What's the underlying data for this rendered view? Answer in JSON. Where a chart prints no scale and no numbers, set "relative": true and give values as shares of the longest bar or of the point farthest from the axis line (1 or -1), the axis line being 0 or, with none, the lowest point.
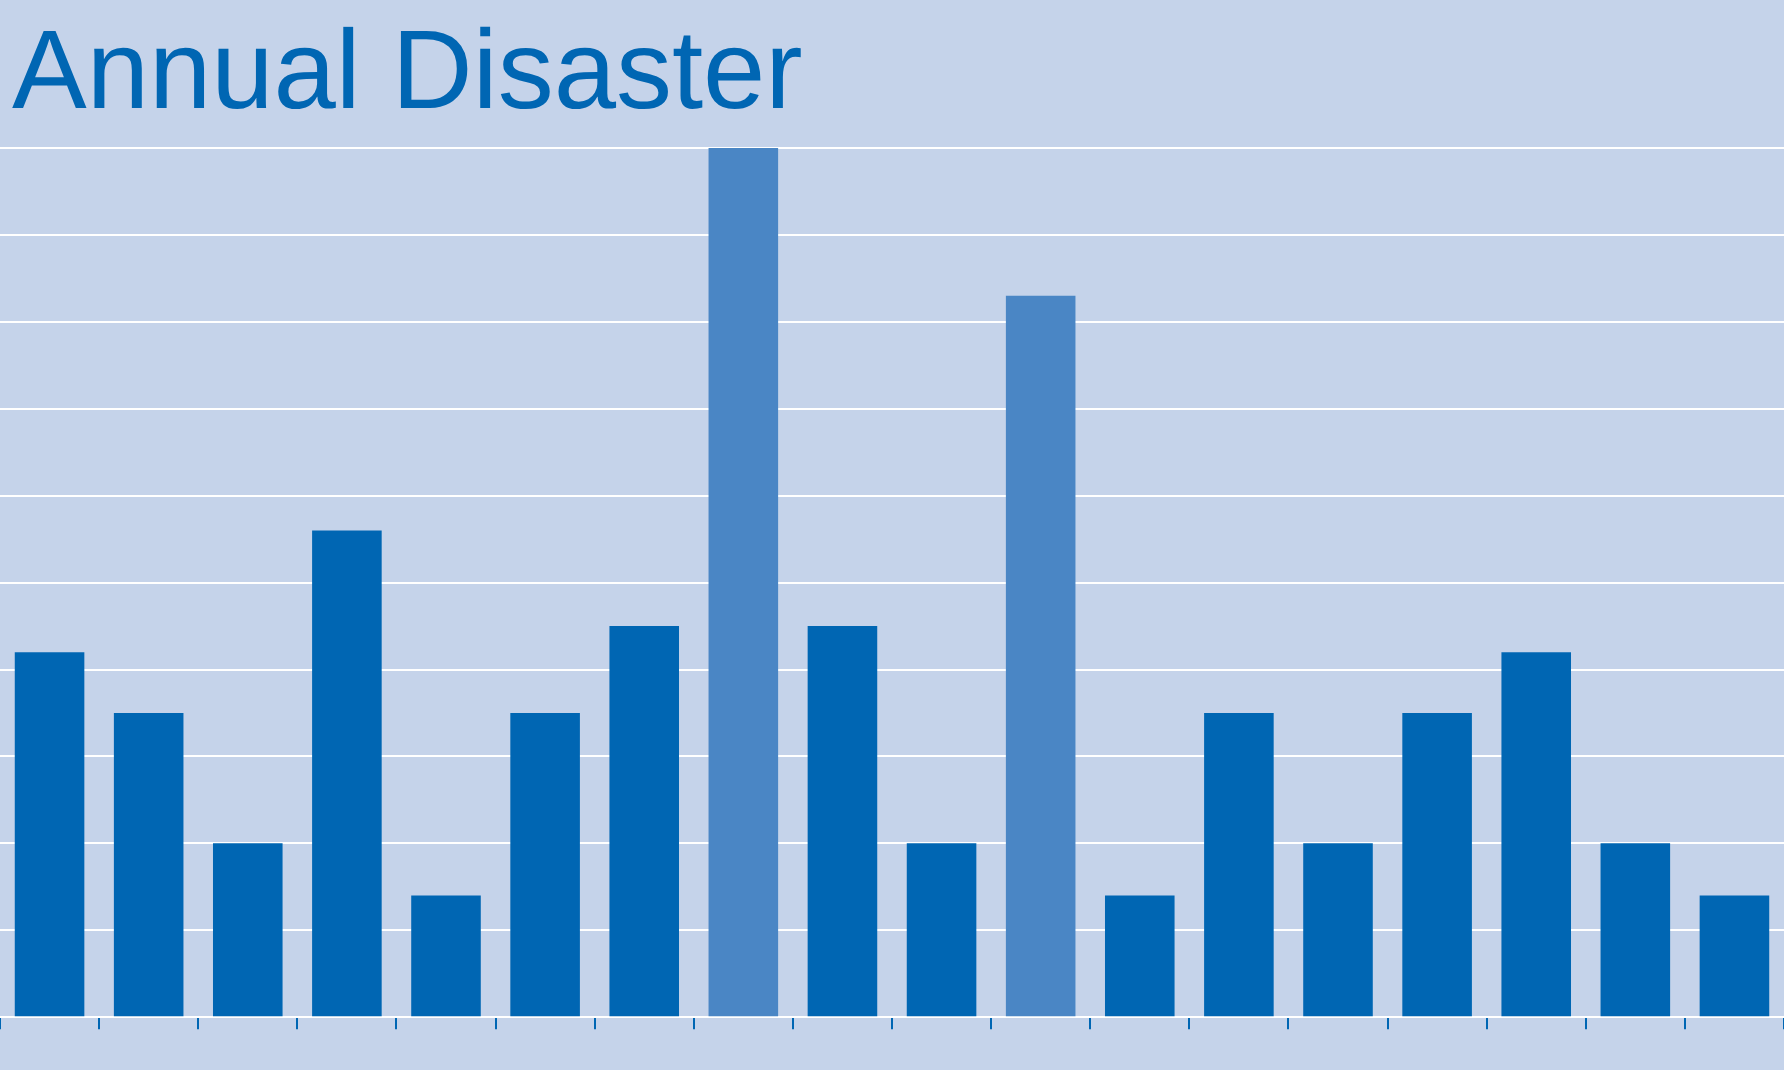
{
  "chart_data": {
    "type": "bar",
    "title": "Annual Disaster",
    "relative": true,
    "grid": "y",
    "legend": false,
    "categories": [
      null,
      null,
      null,
      null,
      null,
      null,
      null,
      null,
      null,
      null,
      null,
      null,
      null,
      null,
      null,
      null,
      null,
      null
    ],
    "values": [
      0.42,
      0.35,
      0.2,
      0.56,
      0.14,
      0.35,
      0.45,
      1,
      0.45,
      0.2,
      0.83,
      0.14,
      0.35,
      0.2,
      0.35,
      0.42,
      0.2,
      0.14
    ],
    "colors": [
      "#0066b3",
      "#0066b3",
      "#0066b3",
      "#0066b3",
      "#0066b3",
      "#0066b3",
      "#0066b3",
      "#4a86c5",
      "#0066b3",
      "#0066b3",
      "#4a86c5",
      "#0066b3",
      "#0066b3",
      "#0066b3",
      "#0066b3",
      "#0066b3",
      "#0066b3",
      "#0066b3"
    ]
  }
}
